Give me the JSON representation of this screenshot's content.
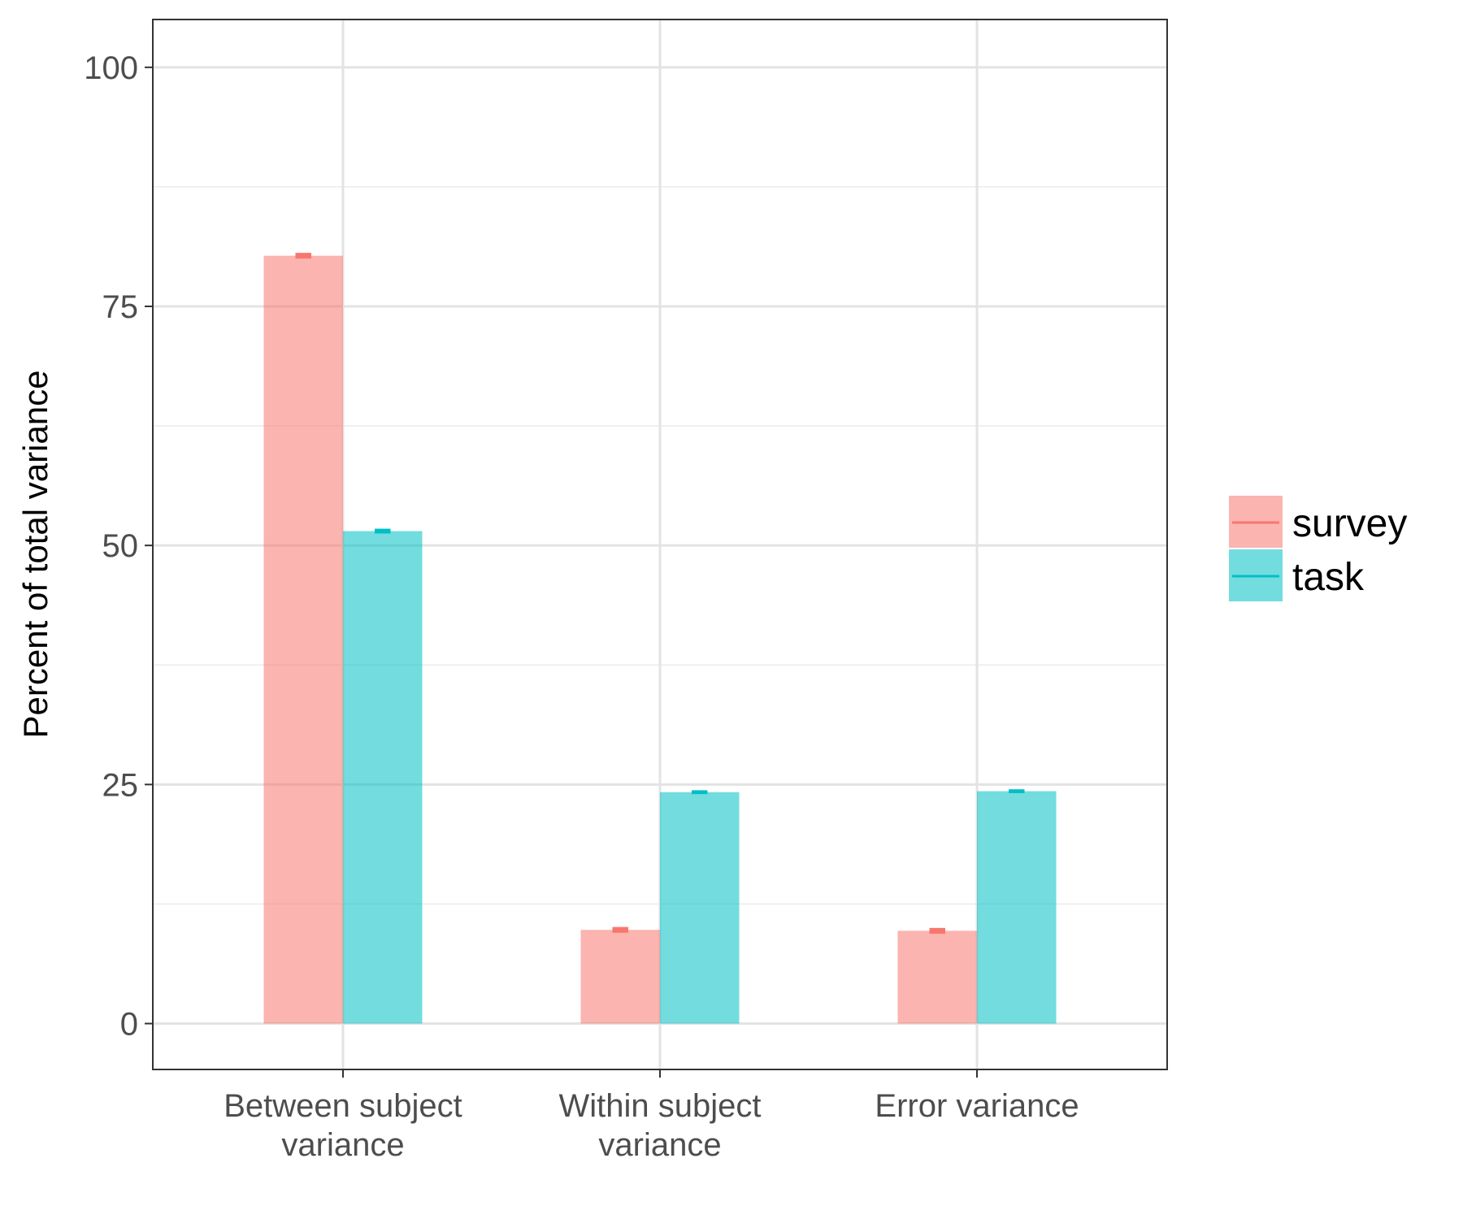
{
  "chart_data": {
    "type": "bar",
    "categories": [
      [
        "Between subject",
        "variance"
      ],
      [
        "Within subject",
        "variance"
      ],
      [
        "Error variance"
      ]
    ],
    "series": [
      {
        "name": "survey",
        "values": [
          80.3,
          9.8,
          9.7
        ],
        "error": [
          0.3,
          0.3,
          0.3
        ],
        "color": "#F8766D"
      },
      {
        "name": "task",
        "values": [
          51.5,
          24.2,
          24.3
        ],
        "error": [
          0.25,
          0.2,
          0.2
        ],
        "color": "#00BFC4"
      }
    ],
    "ylabel": "Percent of total variance",
    "xlabel": "",
    "ylim": [
      -4.8,
      105
    ],
    "yticks": [
      0,
      25,
      50,
      75,
      100
    ],
    "grid": true,
    "legend_position": "right"
  }
}
